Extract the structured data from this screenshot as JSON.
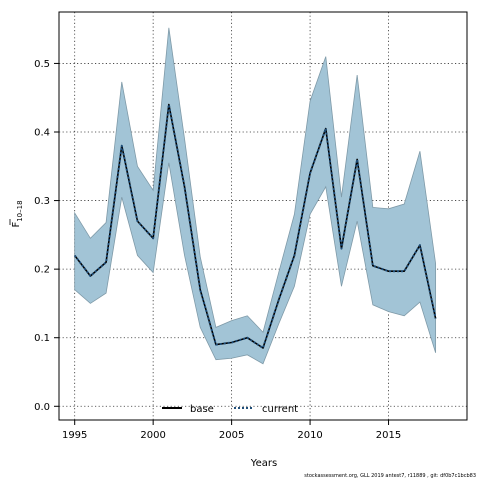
{
  "chart_data": {
    "type": "line",
    "xlabel": "Years",
    "ylabel_main": "F",
    "ylabel_sub": "10–18",
    "xlim": [
      1994,
      2020
    ],
    "ylim": [
      -0.02,
      0.575
    ],
    "x_ticks": [
      1995,
      2000,
      2005,
      2010,
      2015
    ],
    "y_ticks": [
      0.0,
      0.1,
      0.2,
      0.3,
      0.4,
      0.5
    ],
    "y_tick_labels": [
      "0.0",
      "0.1",
      "0.2",
      "0.3",
      "0.4",
      "0.5"
    ],
    "grid": true,
    "legend_position": "bottom-center",
    "x": [
      1995,
      1996,
      1997,
      1998,
      1999,
      2000,
      2001,
      2002,
      2003,
      2004,
      2005,
      2006,
      2007,
      2008,
      2009,
      2010,
      2011,
      2012,
      2013,
      2014,
      2015,
      2016,
      2017,
      2018
    ],
    "series": [
      {
        "name": "base",
        "color": "#000000",
        "style": "solid",
        "values": [
          0.22,
          0.19,
          0.21,
          0.38,
          0.27,
          0.245,
          0.44,
          0.32,
          0.17,
          0.09,
          0.093,
          0.1,
          0.085,
          0.155,
          0.22,
          0.34,
          0.405,
          0.23,
          0.36,
          0.205,
          0.197,
          0.197,
          0.235,
          0.128
        ]
      },
      {
        "name": "current",
        "color": "#1f4e79",
        "style": "dotted",
        "values": [
          0.22,
          0.19,
          0.21,
          0.38,
          0.27,
          0.245,
          0.44,
          0.32,
          0.17,
          0.09,
          0.093,
          0.1,
          0.085,
          0.155,
          0.22,
          0.34,
          0.405,
          0.23,
          0.36,
          0.205,
          0.197,
          0.197,
          0.235,
          0.128
        ]
      }
    ],
    "band": {
      "color": "#a2c4d6",
      "lower": [
        0.17,
        0.15,
        0.165,
        0.305,
        0.22,
        0.195,
        0.355,
        0.22,
        0.115,
        0.068,
        0.07,
        0.075,
        0.062,
        0.12,
        0.175,
        0.28,
        0.32,
        0.175,
        0.27,
        0.148,
        0.138,
        0.132,
        0.152,
        0.078
      ],
      "upper": [
        0.282,
        0.245,
        0.268,
        0.473,
        0.35,
        0.315,
        0.552,
        0.39,
        0.218,
        0.115,
        0.125,
        0.132,
        0.108,
        0.195,
        0.28,
        0.445,
        0.51,
        0.305,
        0.483,
        0.29,
        0.288,
        0.295,
        0.372,
        0.208
      ]
    }
  },
  "legend": {
    "base_label": "base",
    "current_label": "current"
  },
  "footer": {
    "text": "stockassessment.org, GLL 2019 antest7, r11889 , git: df0b7c1bcb83"
  }
}
